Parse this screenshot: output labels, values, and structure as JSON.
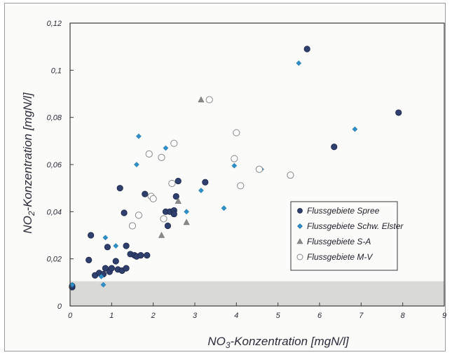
{
  "chart_data": {
    "type": "scatter",
    "title": "",
    "xlabel": {
      "prefix": "NO",
      "sub": "3",
      "suffix": "-Konzentration [mgN/l]"
    },
    "ylabel": {
      "prefix": "NO",
      "sub": "2",
      "suffix": "-Konzentration [mgN/l]"
    },
    "xlim": [
      0,
      9
    ],
    "ylim": [
      0,
      0.12
    ],
    "x_ticks": [
      "0",
      "1",
      "2",
      "3",
      "4",
      "5",
      "6",
      "7",
      "8",
      "9"
    ],
    "y_ticks": [
      "0",
      "0,02",
      "0,04",
      "0,06",
      "0,08",
      "0,1",
      "0,12"
    ],
    "shaded_band": [
      0,
      0.0105
    ],
    "grid": false,
    "legend_position": "right",
    "series": [
      {
        "name": "Flussgebiete Spree",
        "marker": "circle-filled",
        "color": "#2f3f6e",
        "points": [
          [
            0.05,
            0.008
          ],
          [
            0.05,
            0.0085
          ],
          [
            0.45,
            0.0195
          ],
          [
            0.5,
            0.03
          ],
          [
            0.6,
            0.013
          ],
          [
            0.7,
            0.014
          ],
          [
            0.8,
            0.0135
          ],
          [
            0.85,
            0.016
          ],
          [
            0.9,
            0.025
          ],
          [
            0.95,
            0.0145
          ],
          [
            1.0,
            0.016
          ],
          [
            1.1,
            0.019
          ],
          [
            1.15,
            0.0155
          ],
          [
            1.2,
            0.05
          ],
          [
            1.25,
            0.015
          ],
          [
            1.3,
            0.0395
          ],
          [
            1.35,
            0.0255
          ],
          [
            1.35,
            0.016
          ],
          [
            1.45,
            0.022
          ],
          [
            1.55,
            0.0215
          ],
          [
            1.6,
            0.021
          ],
          [
            1.7,
            0.0215
          ],
          [
            1.8,
            0.0475
          ],
          [
            1.85,
            0.0215
          ],
          [
            2.3,
            0.04
          ],
          [
            2.35,
            0.034
          ],
          [
            2.4,
            0.04
          ],
          [
            2.5,
            0.0405
          ],
          [
            2.5,
            0.039
          ],
          [
            2.55,
            0.0465
          ],
          [
            2.6,
            0.053
          ],
          [
            3.25,
            0.0525
          ],
          [
            5.7,
            0.109
          ],
          [
            6.35,
            0.0675
          ],
          [
            7.9,
            0.082
          ]
        ]
      },
      {
        "name": "Flussgebiete Schw. Elster",
        "marker": "diamond",
        "color": "#2e8fc9",
        "points": [
          [
            0.05,
            0.009
          ],
          [
            0.75,
            0.0125
          ],
          [
            0.8,
            0.009
          ],
          [
            0.85,
            0.029
          ],
          [
            1.1,
            0.0255
          ],
          [
            1.6,
            0.06
          ],
          [
            1.65,
            0.072
          ],
          [
            2.3,
            0.067
          ],
          [
            2.8,
            0.04
          ],
          [
            3.15,
            0.049
          ],
          [
            3.7,
            0.0415
          ],
          [
            3.95,
            0.0595
          ],
          [
            4.6,
            0.058
          ],
          [
            5.5,
            0.103
          ],
          [
            6.85,
            0.075
          ]
        ]
      },
      {
        "name": "Flussgebiete S-A",
        "marker": "triangle",
        "color": "#8a8a8a",
        "points": [
          [
            2.2,
            0.03
          ],
          [
            2.6,
            0.0445
          ],
          [
            2.8,
            0.0355
          ],
          [
            3.15,
            0.0875
          ]
        ]
      },
      {
        "name": "Flussgebiete M-V",
        "marker": "circle-open",
        "color": "#888888",
        "points": [
          [
            1.5,
            0.034
          ],
          [
            1.65,
            0.0385
          ],
          [
            1.9,
            0.0645
          ],
          [
            1.95,
            0.0465
          ],
          [
            2.0,
            0.0455
          ],
          [
            2.2,
            0.063
          ],
          [
            2.25,
            0.037
          ],
          [
            2.45,
            0.052
          ],
          [
            2.5,
            0.069
          ],
          [
            3.35,
            0.0875
          ],
          [
            3.95,
            0.0625
          ],
          [
            4.0,
            0.0735
          ],
          [
            4.1,
            0.051
          ],
          [
            4.55,
            0.058
          ],
          [
            5.3,
            0.0555
          ]
        ]
      }
    ]
  }
}
